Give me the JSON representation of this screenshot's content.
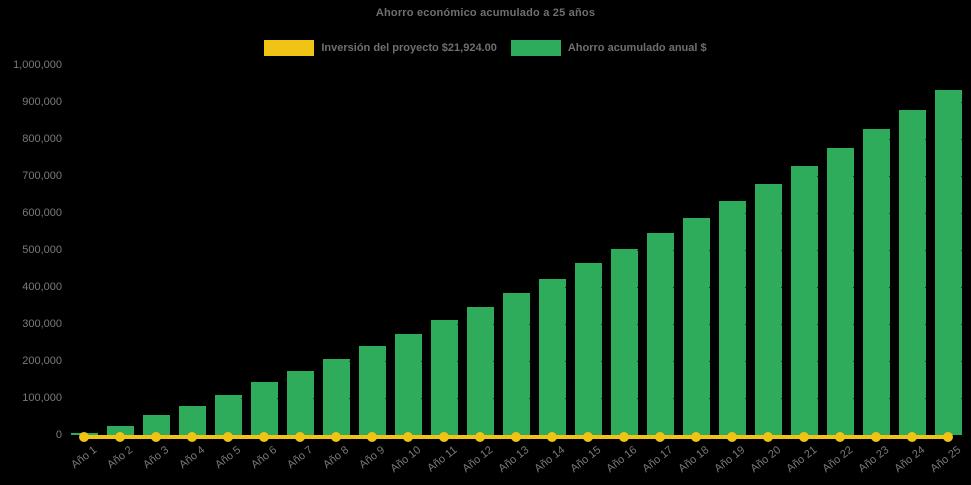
{
  "chart": {
    "title": "Ahorro económico acumulado a 25 años"
  },
  "legend": {
    "investment_label": "Inversión del proyecto $21,924.00",
    "savings_label": "Ahorro acumulado anual $"
  },
  "colors": {
    "background": "#000000",
    "bar_green": "#2EAC5B",
    "line_yellow": "#F0C314",
    "text_gray": "#7A7A7A",
    "title_gray": "#6F6F6F"
  },
  "chart_data": {
    "type": "bar",
    "title": "Ahorro económico acumulado a 25 años",
    "categories": [
      "Año 1",
      "Año 2",
      "Año 3",
      "Año 4",
      "Año 5",
      "Año 6",
      "Año 7",
      "Año 8",
      "Año 9",
      "Año 10",
      "Año 11",
      "Año 12",
      "Año 13",
      "Año 14",
      "Año 15",
      "Año 16",
      "Año 17",
      "Año 18",
      "Año 19",
      "Año 20",
      "Año 21",
      "Año 22",
      "Año 23",
      "Año 24",
      "Año 25"
    ],
    "series": [
      {
        "name": "Inversión del proyecto $21,924.00",
        "type": "line",
        "color": "#F0C314",
        "marker": "circle",
        "values": [
          21924,
          21924,
          21924,
          21924,
          21924,
          21924,
          21924,
          21924,
          21924,
          21924,
          21924,
          21924,
          21924,
          21924,
          21924,
          21924,
          21924,
          21924,
          21924,
          21924,
          21924,
          21924,
          21924,
          21924,
          21924
        ]
      },
      {
        "name": "Ahorro acumulado anual $",
        "type": "bar",
        "color": "#2EAC5B",
        "values": [
          5000,
          25000,
          54000,
          79000,
          108000,
          143000,
          172000,
          205000,
          240000,
          272000,
          310000,
          345000,
          385000,
          421000,
          464000,
          503000,
          547000,
          586000,
          633000,
          679000,
          728000,
          776000,
          826000,
          879000,
          933000
        ]
      }
    ],
    "xlabel": "",
    "ylabel": "",
    "ylim": [
      0,
      1000000
    ],
    "ytick_interval": 100000,
    "ytick_labels": [
      "0",
      "100,000",
      "200,000",
      "300,000",
      "400,000",
      "500,000",
      "600,000",
      "700,000",
      "800,000",
      "900,000",
      "1,000,000"
    ],
    "x_tick_rotation_deg": -38,
    "legend_position": "top-center",
    "grid": "horizontal-dotted-dark",
    "plot_background": "black"
  }
}
